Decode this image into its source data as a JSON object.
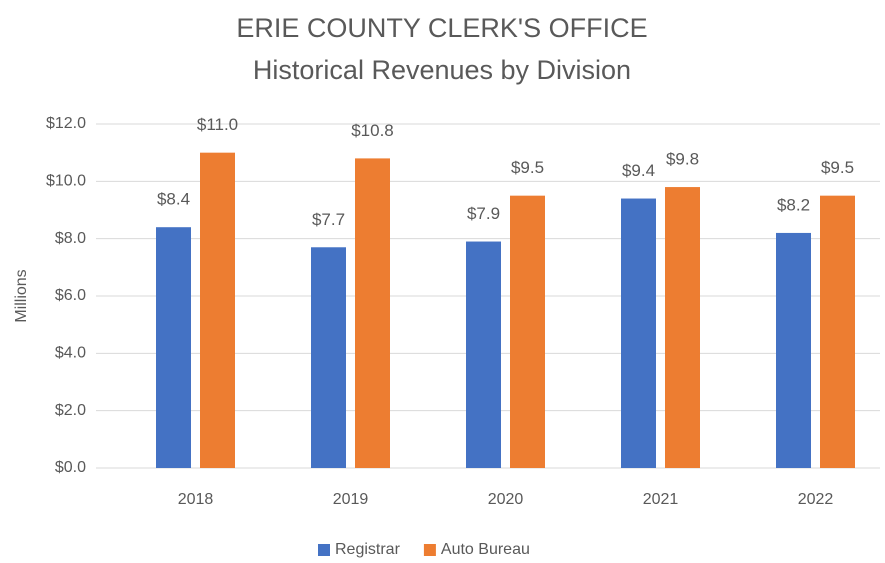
{
  "chart_data": {
    "type": "bar",
    "title": "ERIE COUNTY CLERK'S OFFICE",
    "subtitle": "Historical Revenues by Division",
    "y_label": "Millions",
    "categories": [
      "2018",
      "2019",
      "2020",
      "2021",
      "2022"
    ],
    "series": [
      {
        "name": "Registrar",
        "color": "#4472c4",
        "values": [
          8.4,
          7.7,
          7.9,
          9.4,
          8.2
        ],
        "value_labels": [
          "$8.4",
          "$7.7",
          "$7.9",
          "$9.4",
          "$8.2"
        ]
      },
      {
        "name": "Auto Bureau",
        "color": "#ed7d31",
        "values": [
          11.0,
          10.8,
          9.5,
          9.8,
          9.5
        ],
        "value_labels": [
          "$11.0",
          "$10.8",
          "$9.5",
          "$9.8",
          "$9.5"
        ]
      }
    ],
    "ylim": [
      0,
      12
    ],
    "yticks": [
      {
        "value": 0,
        "label": "$0.0"
      },
      {
        "value": 2,
        "label": "$2.0"
      },
      {
        "value": 4,
        "label": "$4.0"
      },
      {
        "value": 6,
        "label": "$6.0"
      },
      {
        "value": 8,
        "label": "$8.0"
      },
      {
        "value": 10,
        "label": "$10.0"
      },
      {
        "value": 12,
        "label": "$12.0"
      }
    ],
    "grid": true,
    "legend": "bottom"
  }
}
